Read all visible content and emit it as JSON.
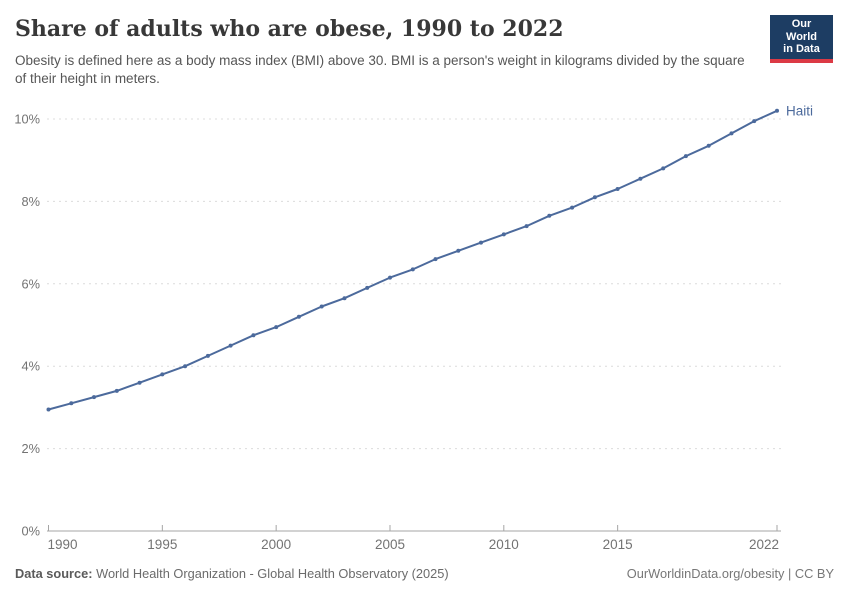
{
  "header": {
    "title": "Share of adults who are obese, 1990 to 2022",
    "subtitle": "Obesity is defined here as a body mass index (BMI) above 30. BMI is a person's weight in kilograms divided by the square of their height in meters."
  },
  "logo": {
    "line1": "Our World",
    "line2": "in Data",
    "bg_color": "#1D3D63",
    "bar_color": "#DC3A45"
  },
  "chart_data": {
    "type": "line",
    "title": "Share of adults who are obese, 1990 to 2022",
    "x": [
      1990,
      1991,
      1992,
      1993,
      1994,
      1995,
      1996,
      1997,
      1998,
      1999,
      2000,
      2001,
      2002,
      2003,
      2004,
      2005,
      2006,
      2007,
      2008,
      2009,
      2010,
      2011,
      2012,
      2013,
      2014,
      2015,
      2016,
      2017,
      2018,
      2019,
      2020,
      2021,
      2022
    ],
    "series": [
      {
        "name": "Haiti",
        "color": "#4C6A9C",
        "values": [
          2.95,
          3.1,
          3.25,
          3.4,
          3.6,
          3.8,
          4.0,
          4.25,
          4.5,
          4.75,
          4.95,
          5.2,
          5.45,
          5.65,
          5.9,
          6.15,
          6.35,
          6.6,
          6.8,
          7.0,
          7.2,
          7.4,
          7.65,
          7.85,
          8.1,
          8.3,
          8.55,
          8.8,
          9.1,
          9.35,
          9.65,
          9.95,
          10.2
        ]
      }
    ],
    "xlabel": "",
    "ylabel": "",
    "ylim": [
      0,
      10
    ],
    "yticks": [
      0,
      2,
      4,
      6,
      8,
      10
    ],
    "ytick_suffix": "%",
    "xticks": [
      1990,
      1995,
      2000,
      2005,
      2010,
      2015,
      2022
    ],
    "grid": "horizontal-dashed",
    "gridline_color": "#dcdcdc",
    "axis_line_color": "#a5a5a5",
    "tick_label_color": "#737373",
    "legend_position": "end-of-line-label"
  },
  "footer": {
    "source_label": "Data source:",
    "source_value": "World Health Organization - Global Health Observatory (2025)",
    "link": "OurWorldinData.org/obesity | CC BY"
  }
}
